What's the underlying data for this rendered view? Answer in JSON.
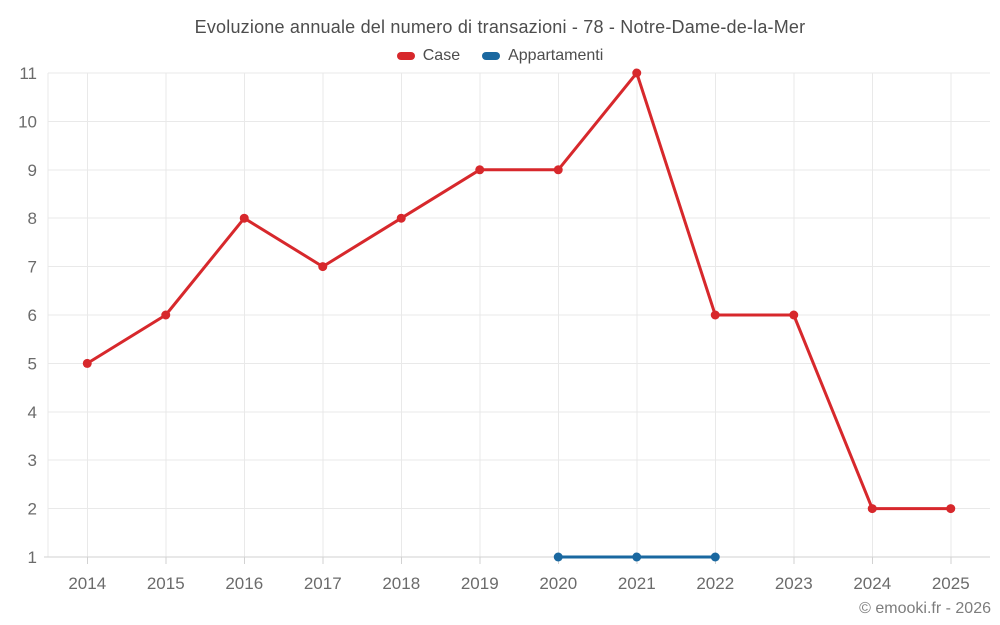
{
  "title": "Evoluzione annuale del numero di transazioni - 78 - Notre-Dame-de-la-Mer",
  "credit": "© emooki.fr - 2026",
  "colors": {
    "grid": "#e9e9e9",
    "axis_line": "#d2d2d2",
    "tick_label": "#6b6b6b",
    "title_text": "#4d4d4d",
    "credit_text": "#7d7d7d",
    "case_red": "#d7282c",
    "appartamenti_blue": "#1a68a0"
  },
  "chart_data": {
    "type": "line",
    "title": "Evoluzione annuale del numero di transazioni - 78 - Notre-Dame-de-la-Mer",
    "categories": [
      "2014",
      "2015",
      "2016",
      "2017",
      "2018",
      "2019",
      "2020",
      "2021",
      "2022",
      "2023",
      "2024",
      "2025"
    ],
    "series": [
      {
        "name": "Case",
        "color": "#d7282c",
        "values": [
          5,
          6,
          8,
          7,
          8,
          9,
          9,
          11,
          6,
          6,
          2,
          2
        ]
      },
      {
        "name": "Appartamenti",
        "color": "#1a68a0",
        "values": [
          null,
          null,
          null,
          null,
          null,
          null,
          1,
          1,
          1,
          null,
          null,
          null
        ]
      }
    ],
    "xlabel": "",
    "ylabel": "",
    "ylim": [
      1,
      11
    ],
    "yticks": [
      1,
      2,
      3,
      4,
      5,
      6,
      7,
      8,
      9,
      10,
      11
    ],
    "grid": true,
    "legend_position": "top"
  }
}
